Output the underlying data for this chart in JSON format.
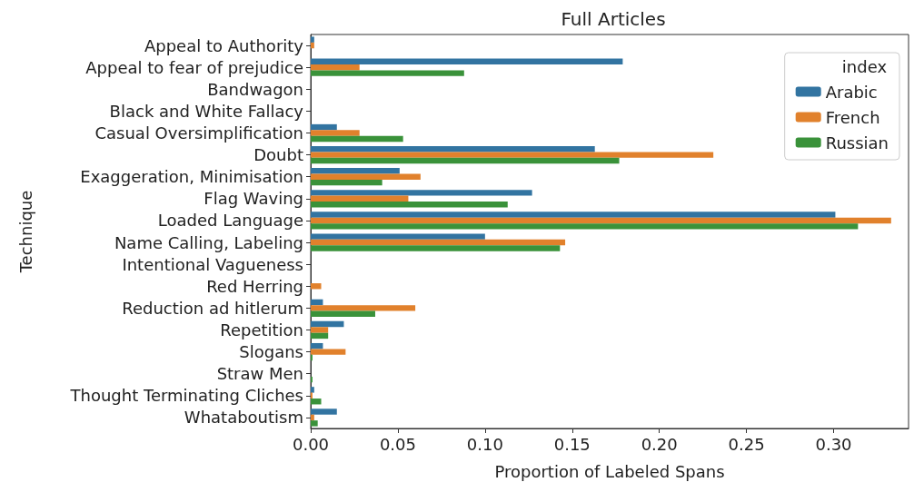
{
  "chart_data": {
    "type": "bar",
    "orientation": "horizontal",
    "title": "Full Articles",
    "xlabel": "Proportion of Labeled Spans",
    "ylabel": "Technique",
    "legend_title": "index",
    "legend": "top right",
    "grid": false,
    "categories": [
      "Appeal to Authority",
      "Appeal to fear of prejudice",
      "Bandwagon",
      "Black and White Fallacy",
      "Casual Oversimplification",
      "Doubt",
      "Exaggeration, Minimisation",
      "Flag Waving",
      "Loaded Language",
      "Name Calling, Labeling",
      "Intentional Vagueness",
      "Red Herring",
      "Reduction ad hitlerum",
      "Repetition",
      "Slogans",
      "Straw Men",
      "Thought Terminating Cliches",
      "Whataboutism"
    ],
    "xlim": [
      0,
      0.343
    ],
    "xticks": [
      {
        "value": 0,
        "label": "0.00"
      },
      {
        "value": 0.05,
        "label": "0.05"
      },
      {
        "value": 0.1,
        "label": "0.10"
      },
      {
        "value": 0.15,
        "label": "0.15"
      },
      {
        "value": 0.2,
        "label": "0.20"
      },
      {
        "value": 0.25,
        "label": "0.25"
      },
      {
        "value": 0.3,
        "label": "0.30"
      }
    ],
    "series": [
      {
        "name": "Arabic",
        "color": "#3274a1",
        "values": [
          0.002,
          0.179,
          0,
          0,
          0.015,
          0.163,
          0.051,
          0.127,
          0.301,
          0.1,
          0,
          0,
          0.007,
          0.019,
          0.007,
          0,
          0.002,
          0.015
        ]
      },
      {
        "name": "French",
        "color": "#e1812c",
        "values": [
          0.002,
          0.028,
          0,
          0,
          0.028,
          0.231,
          0.063,
          0.056,
          0.333,
          0.146,
          0,
          0.006,
          0.06,
          0.01,
          0.02,
          0,
          0.001,
          0.002
        ]
      },
      {
        "name": "Russian",
        "color": "#3a923a",
        "values": [
          0,
          0.088,
          0,
          0,
          0.053,
          0.177,
          0.041,
          0.113,
          0.314,
          0.143,
          0,
          0,
          0.037,
          0.01,
          0.001,
          0.001,
          0.006,
          0.004
        ]
      }
    ]
  }
}
